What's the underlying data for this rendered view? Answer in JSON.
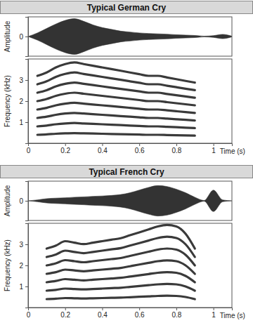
{
  "chart_data": [
    {
      "type": "area",
      "title": "Typical German Cry",
      "y_label": "Amplitude",
      "color": "#333333",
      "x": [
        0,
        0.05,
        0.1,
        0.15,
        0.2,
        0.25,
        0.3,
        0.35,
        0.4,
        0.45,
        0.5,
        0.55,
        0.6,
        0.65,
        0.7,
        0.75,
        0.8,
        0.85,
        0.9,
        0.95,
        1.0,
        1.05,
        1.1
      ],
      "values": [
        0,
        0.2,
        0.45,
        0.7,
        0.9,
        1.0,
        0.85,
        0.65,
        0.5,
        0.4,
        0.3,
        0.25,
        0.2,
        0.17,
        0.15,
        0.13,
        0.1,
        0.08,
        0.06,
        0.02,
        0.05,
        0.12,
        0.02
      ],
      "xlim": [
        0,
        1.1
      ],
      "ylim": [
        -1.1,
        1.1
      ],
      "yticks": [
        0
      ],
      "tick_labels": "y"
    },
    {
      "type": "line",
      "y_label": "Frequency (kHz)",
      "x_label": "Time (s)",
      "color": "#3a3a3a",
      "x": [
        0.05,
        0.1,
        0.15,
        0.2,
        0.25,
        0.3,
        0.35,
        0.4,
        0.45,
        0.5,
        0.55,
        0.6,
        0.65,
        0.7,
        0.75,
        0.8,
        0.85,
        0.9
      ],
      "series": [
        {
          "values": [
            0.4,
            0.42,
            0.45,
            0.47,
            0.48,
            0.47,
            0.46,
            0.45,
            0.44,
            0.43,
            0.42,
            0.41,
            0.4,
            0.4,
            0.39,
            0.38,
            0.37,
            0.36
          ]
        },
        {
          "values": [
            0.8,
            0.84,
            0.9,
            0.94,
            0.96,
            0.94,
            0.92,
            0.9,
            0.88,
            0.86,
            0.84,
            0.82,
            0.8,
            0.8,
            0.78,
            0.76,
            0.74,
            0.72
          ]
        },
        {
          "values": [
            1.2,
            1.26,
            1.35,
            1.41,
            1.44,
            1.41,
            1.38,
            1.35,
            1.32,
            1.29,
            1.26,
            1.23,
            1.2,
            1.2,
            1.17,
            1.14,
            1.11,
            1.08
          ]
        },
        {
          "values": [
            1.6,
            1.68,
            1.8,
            1.88,
            1.92,
            1.88,
            1.84,
            1.8,
            1.76,
            1.72,
            1.68,
            1.64,
            1.6,
            1.6,
            1.56,
            1.52,
            1.48,
            1.44
          ]
        },
        {
          "values": [
            2.0,
            2.1,
            2.25,
            2.35,
            2.4,
            2.35,
            2.3,
            2.25,
            2.2,
            2.15,
            2.1,
            2.05,
            2.0,
            2.0,
            1.95,
            1.9,
            1.85,
            1.8
          ]
        },
        {
          "values": [
            2.4,
            2.52,
            2.7,
            2.82,
            2.88,
            2.82,
            2.76,
            2.7,
            2.64,
            2.58,
            2.52,
            2.46,
            2.4,
            2.4,
            2.34,
            2.28,
            2.22,
            2.16
          ]
        },
        {
          "values": [
            2.8,
            2.94,
            3.15,
            3.29,
            3.36,
            3.29,
            3.22,
            3.15,
            3.08,
            3.01,
            2.94,
            2.87,
            2.8,
            2.8,
            2.73,
            2.66,
            2.59,
            2.52
          ]
        },
        {
          "values": [
            3.2,
            3.36,
            3.6,
            3.76,
            3.84,
            3.76,
            3.68,
            3.6,
            3.52,
            3.44,
            3.36,
            3.28,
            3.2,
            3.2,
            3.12,
            3.04,
            2.96,
            2.88
          ]
        }
      ],
      "xlim": [
        0,
        1.1
      ],
      "xticks": [
        0,
        0.2,
        0.4,
        0.6,
        0.8,
        1
      ],
      "ylim": [
        0,
        4
      ],
      "yticks": [
        1,
        2,
        3
      ]
    },
    {
      "type": "area",
      "title": "Typical French Cry",
      "y_label": "Amplitude",
      "color": "#333333",
      "x": [
        0,
        0.05,
        0.1,
        0.15,
        0.2,
        0.25,
        0.3,
        0.35,
        0.4,
        0.45,
        0.5,
        0.55,
        0.6,
        0.65,
        0.7,
        0.75,
        0.8,
        0.85,
        0.9,
        0.95,
        1.0,
        1.05,
        1.1
      ],
      "values": [
        0,
        0.05,
        0.12,
        0.15,
        0.17,
        0.2,
        0.22,
        0.25,
        0.27,
        0.3,
        0.35,
        0.45,
        0.6,
        0.75,
        0.85,
        0.8,
        0.65,
        0.45,
        0.2,
        0.02,
        0.6,
        0.05,
        0
      ],
      "xlim": [
        0,
        1.1
      ],
      "ylim": [
        -1.1,
        1.1
      ],
      "yticks": [
        0
      ],
      "tick_labels": "y"
    },
    {
      "type": "line",
      "y_label": "Frequency (kHz)",
      "x_label": "Time (s)",
      "color": "#3a3a3a",
      "x": [
        0.1,
        0.15,
        0.2,
        0.25,
        0.3,
        0.35,
        0.4,
        0.45,
        0.5,
        0.55,
        0.6,
        0.65,
        0.7,
        0.75,
        0.8,
        0.85,
        0.9
      ],
      "series": [
        {
          "values": [
            0.4,
            0.42,
            0.45,
            0.44,
            0.43,
            0.44,
            0.45,
            0.46,
            0.47,
            0.49,
            0.51,
            0.53,
            0.55,
            0.56,
            0.55,
            0.5,
            0.4
          ]
        },
        {
          "values": [
            0.8,
            0.84,
            0.9,
            0.88,
            0.86,
            0.88,
            0.9,
            0.92,
            0.94,
            0.98,
            1.02,
            1.06,
            1.1,
            1.12,
            1.1,
            1.0,
            0.8
          ]
        },
        {
          "values": [
            1.2,
            1.26,
            1.35,
            1.32,
            1.29,
            1.32,
            1.35,
            1.38,
            1.41,
            1.47,
            1.53,
            1.59,
            1.65,
            1.68,
            1.65,
            1.5,
            1.2
          ]
        },
        {
          "values": [
            1.6,
            1.68,
            1.8,
            1.76,
            1.72,
            1.76,
            1.8,
            1.84,
            1.88,
            1.96,
            2.04,
            2.12,
            2.2,
            2.24,
            2.2,
            2.0,
            1.6
          ]
        },
        {
          "values": [
            2.0,
            2.1,
            2.25,
            2.2,
            2.15,
            2.2,
            2.25,
            2.3,
            2.35,
            2.45,
            2.55,
            2.65,
            2.75,
            2.8,
            2.75,
            2.5,
            2.0
          ]
        },
        {
          "values": [
            2.4,
            2.52,
            2.7,
            2.64,
            2.58,
            2.64,
            2.7,
            2.76,
            2.82,
            2.94,
            3.06,
            3.18,
            3.3,
            3.36,
            3.3,
            3.0,
            2.4
          ]
        },
        {
          "values": [
            2.8,
            2.94,
            3.15,
            3.08,
            3.01,
            3.08,
            3.15,
            3.22,
            3.29,
            3.43,
            3.57,
            3.71,
            3.85,
            3.92,
            3.85,
            3.5,
            2.8
          ]
        }
      ],
      "xlim": [
        0,
        1.1
      ],
      "xticks": [
        0,
        0.2,
        0.4,
        0.6,
        0.8,
        1
      ],
      "ylim": [
        0,
        4
      ],
      "yticks": [
        1,
        2,
        3
      ]
    }
  ]
}
